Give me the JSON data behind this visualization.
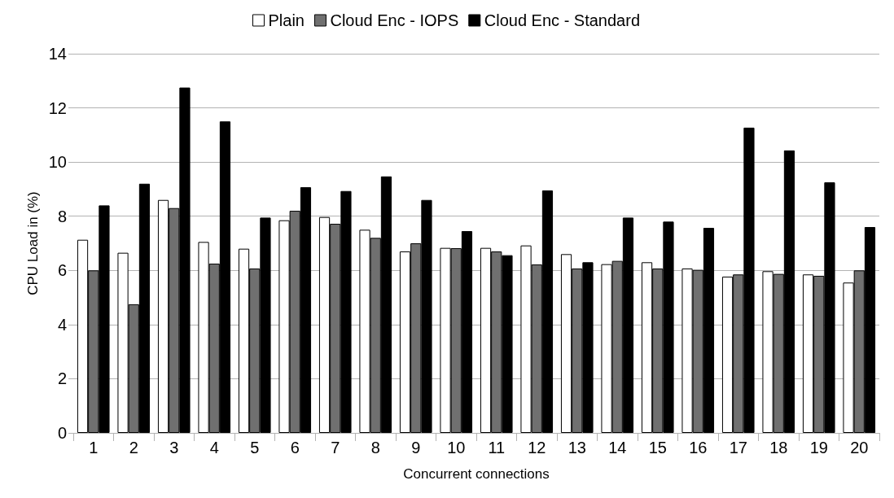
{
  "chart_data": {
    "type": "bar",
    "xlabel": "Concurrent connections",
    "ylabel": "CPU Load in (%)",
    "categories": [
      "1",
      "2",
      "3",
      "4",
      "5",
      "6",
      "7",
      "8",
      "9",
      "10",
      "11",
      "12",
      "13",
      "14",
      "15",
      "16",
      "17",
      "18",
      "19",
      "20"
    ],
    "series": [
      {
        "name": "Plain",
        "color": "#ffffff",
        "values": [
          7.13,
          6.65,
          8.6,
          7.05,
          6.8,
          7.85,
          7.97,
          7.5,
          6.7,
          6.83,
          6.83,
          6.92,
          6.6,
          6.23,
          6.3,
          6.07,
          5.77,
          5.97,
          5.85,
          5.55
        ]
      },
      {
        "name": "Cloud Enc - IOPS",
        "color": "#707070",
        "values": [
          6.0,
          4.75,
          8.3,
          6.25,
          6.07,
          8.2,
          7.72,
          7.2,
          7.0,
          6.82,
          6.7,
          6.22,
          6.07,
          6.35,
          6.07,
          6.02,
          5.85,
          5.87,
          5.8,
          6.0
        ]
      },
      {
        "name": "Cloud Enc - Standard",
        "color": "#000000",
        "values": [
          8.4,
          9.2,
          12.75,
          11.5,
          7.95,
          9.07,
          8.93,
          9.47,
          8.6,
          7.45,
          6.56,
          8.95,
          6.3,
          7.95,
          7.8,
          7.57,
          11.27,
          10.43,
          9.25,
          7.6
        ]
      }
    ],
    "ylim": [
      0,
      14
    ],
    "yticks": [
      0,
      2,
      4,
      6,
      8,
      10,
      12,
      14
    ],
    "grid": "y",
    "legend": "top"
  }
}
